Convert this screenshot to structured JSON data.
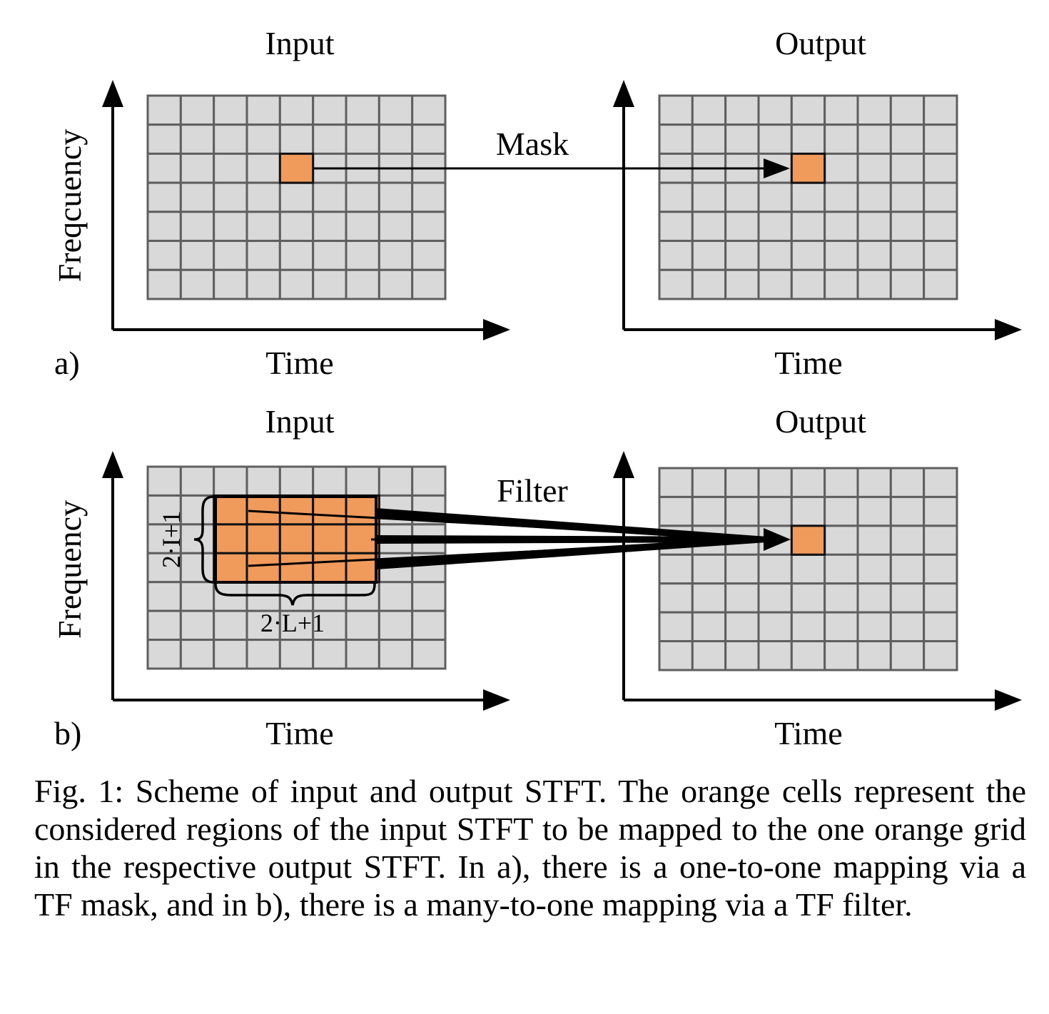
{
  "panels": {
    "a": {
      "tag": "a)",
      "input_title": "Input",
      "output_title": "Output",
      "ylabel": "Freqcuency",
      "xlabel_input": "Time",
      "xlabel_output": "Time",
      "arrow_label": "Mask"
    },
    "b": {
      "tag": "b)",
      "input_title": "Input",
      "output_title": "Output",
      "ylabel": "Frequency",
      "xlabel_input": "Time",
      "xlabel_output": "Time",
      "arrow_label": "Filter",
      "brace_height_label": "2·I+1",
      "brace_width_label": "2·L+1"
    }
  },
  "grid": {
    "rows": 7,
    "cols": 9
  },
  "colors": {
    "cell": "#d9d9d9",
    "cell_border": "#5f5f5f",
    "highlight": "#f09a5c"
  },
  "caption": "Fig. 1: Scheme of input and output STFT. The orange cells represent the considered regions of the input STFT to be mapped to the one orange grid in the respective output STFT. In a), there is a one-to-one mapping via a TF mask, and in b), there is a many-to-one mapping via a TF filter."
}
